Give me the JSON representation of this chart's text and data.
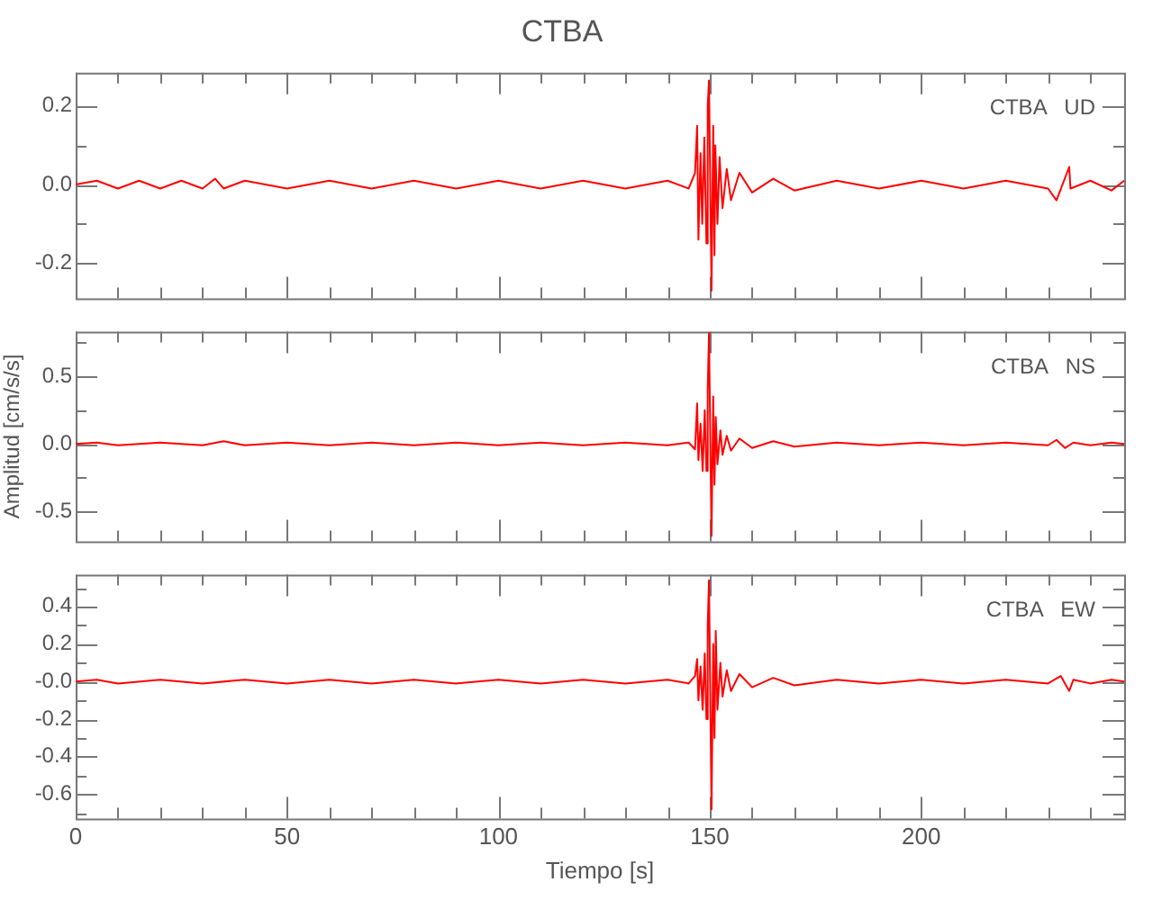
{
  "chart_data": [
    {
      "type": "line",
      "title": "CTBA",
      "annotations": [
        "CTBA   UD"
      ],
      "tick_labels": "y",
      "xlim": [
        0,
        248
      ],
      "ylim": [
        -0.29,
        0.285
      ],
      "xticks": [
        0,
        {
          "value": 10,
          "label": null
        },
        {
          "value": 20,
          "label": null
        },
        {
          "value": 30,
          "label": null
        },
        {
          "value": 40,
          "label": null
        },
        50,
        {
          "value": 60,
          "label": null
        },
        {
          "value": 70,
          "label": null
        },
        {
          "value": 80,
          "label": null
        },
        {
          "value": 90,
          "label": null
        },
        100,
        {
          "value": 110,
          "label": null
        },
        {
          "value": 120,
          "label": null
        },
        {
          "value": 130,
          "label": null
        },
        {
          "value": 140,
          "label": null
        },
        150,
        {
          "value": 160,
          "label": null
        },
        {
          "value": 170,
          "label": null
        },
        {
          "value": 180,
          "label": null
        },
        {
          "value": 190,
          "label": null
        },
        200,
        {
          "value": 210,
          "label": null
        },
        {
          "value": 220,
          "label": null
        },
        {
          "value": 230,
          "label": null
        },
        {
          "value": 240,
          "label": null
        }
      ],
      "yticks": [
        {
          "value": -0.2,
          "label": "-0.2"
        },
        {
          "value": -0.1,
          "label": null
        },
        {
          "value": 0,
          "label": "0.0"
        },
        {
          "value": 0.1,
          "label": null
        },
        {
          "value": 0.2,
          "label": "0.2"
        }
      ],
      "x": [
        0,
        5,
        10,
        15,
        20,
        25,
        30,
        33,
        35,
        40,
        50,
        60,
        70,
        80,
        90,
        100,
        110,
        120,
        130,
        140,
        145,
        146.5,
        147,
        147.3,
        147.8,
        148.2,
        148.7,
        149.2,
        149.5,
        149.8,
        150.4,
        150.8,
        151.1,
        151.3,
        151.8,
        152.3,
        153,
        154,
        155,
        157,
        160,
        165,
        170,
        180,
        190,
        200,
        210,
        220,
        230,
        232,
        235,
        235.3,
        240,
        245,
        248
      ],
      "series": [
        {
          "color": "#ff0000",
          "values": [
            0,
            0.01,
            -0.01,
            0.01,
            -0.01,
            0.01,
            -0.01,
            0.015,
            -0.01,
            0.01,
            -0.01,
            0.01,
            -0.01,
            0.01,
            -0.01,
            0.01,
            -0.01,
            0.01,
            -0.01,
            0.01,
            -0.01,
            0.03,
            0.15,
            -0.14,
            0.08,
            -0.1,
            0.12,
            -0.15,
            0.2,
            0.265,
            -0.27,
            0.15,
            -0.18,
            0.1,
            -0.1,
            0.07,
            -0.06,
            0.04,
            -0.04,
            0.03,
            -0.02,
            0.015,
            -0.015,
            0.01,
            -0.01,
            0.01,
            -0.01,
            0.01,
            -0.01,
            -0.04,
            0.045,
            -0.01,
            0.01,
            -0.015,
            0.01
          ]
        }
      ]
    },
    {
      "type": "line",
      "ylabel": "Amplitud [cm/s/s]",
      "annotations": [
        "CTBA   NS"
      ],
      "tick_labels": "y",
      "xlim": [
        0,
        248
      ],
      "ylim": [
        -0.72,
        0.83
      ],
      "xticks": [
        0,
        {
          "value": 10,
          "label": null
        },
        {
          "value": 20,
          "label": null
        },
        {
          "value": 30,
          "label": null
        },
        {
          "value": 40,
          "label": null
        },
        50,
        {
          "value": 60,
          "label": null
        },
        {
          "value": 70,
          "label": null
        },
        {
          "value": 80,
          "label": null
        },
        {
          "value": 90,
          "label": null
        },
        100,
        {
          "value": 110,
          "label": null
        },
        {
          "value": 120,
          "label": null
        },
        {
          "value": 130,
          "label": null
        },
        {
          "value": 140,
          "label": null
        },
        150,
        {
          "value": 160,
          "label": null
        },
        {
          "value": 170,
          "label": null
        },
        {
          "value": 180,
          "label": null
        },
        {
          "value": 190,
          "label": null
        },
        200,
        {
          "value": 210,
          "label": null
        },
        {
          "value": 220,
          "label": null
        },
        {
          "value": 230,
          "label": null
        },
        {
          "value": 240,
          "label": null
        }
      ],
      "yticks": [
        {
          "value": -0.5,
          "label": "-0.5"
        },
        {
          "value": -0.25,
          "label": null
        },
        {
          "value": 0,
          "label": "0.0"
        },
        {
          "value": 0.25,
          "label": null
        },
        {
          "value": 0.5,
          "label": "0.5"
        },
        {
          "value": 0.75,
          "label": null
        }
      ],
      "x": [
        0,
        5,
        10,
        20,
        30,
        35,
        40,
        50,
        60,
        70,
        80,
        90,
        100,
        110,
        120,
        130,
        140,
        145,
        146.5,
        147,
        147.3,
        147.8,
        148.3,
        148.8,
        149.2,
        149.5,
        149.8,
        150.4,
        150.8,
        151.1,
        151.4,
        151.8,
        152.5,
        153,
        154,
        155,
        157,
        160,
        165,
        170,
        180,
        190,
        200,
        210,
        220,
        230,
        232,
        234,
        236,
        240,
        245,
        248
      ],
      "series": [
        {
          "color": "#ff0000",
          "values": [
            0,
            0.01,
            -0.01,
            0.01,
            -0.01,
            0.02,
            -0.01,
            0.01,
            -0.01,
            0.01,
            -0.01,
            0.01,
            -0.01,
            0.01,
            -0.01,
            0.01,
            -0.01,
            0.01,
            -0.04,
            0.3,
            -0.12,
            0.15,
            -0.2,
            0.25,
            -0.2,
            0.4,
            0.82,
            -0.68,
            0.35,
            -0.3,
            0.2,
            -0.15,
            0.1,
            -0.08,
            0.06,
            -0.05,
            0.04,
            -0.03,
            0.02,
            -0.02,
            0.01,
            -0.01,
            0.01,
            -0.01,
            0.01,
            -0.01,
            0.03,
            -0.03,
            0.01,
            -0.01,
            0.01,
            0
          ]
        }
      ]
    },
    {
      "type": "line",
      "xlabel": "Tiempo [s]",
      "annotations": [
        "CTBA   EW"
      ],
      "xlim": [
        0,
        248
      ],
      "ylim": [
        -0.73,
        0.57
      ],
      "xticks": [
        0,
        {
          "value": 10,
          "label": null
        },
        {
          "value": 20,
          "label": null
        },
        {
          "value": 30,
          "label": null
        },
        {
          "value": 40,
          "label": null
        },
        50,
        {
          "value": 60,
          "label": null
        },
        {
          "value": 70,
          "label": null
        },
        {
          "value": 80,
          "label": null
        },
        {
          "value": 90,
          "label": null
        },
        100,
        {
          "value": 110,
          "label": null
        },
        {
          "value": 120,
          "label": null
        },
        {
          "value": 130,
          "label": null
        },
        {
          "value": 140,
          "label": null
        },
        150,
        {
          "value": 160,
          "label": null
        },
        {
          "value": 170,
          "label": null
        },
        {
          "value": 180,
          "label": null
        },
        {
          "value": 190,
          "label": null
        },
        200,
        {
          "value": 210,
          "label": null
        },
        {
          "value": 220,
          "label": null
        },
        {
          "value": 230,
          "label": null
        },
        {
          "value": 240,
          "label": null
        }
      ],
      "yticks": [
        {
          "value": -0.7,
          "label": null
        },
        {
          "value": -0.6,
          "label": "-0.6"
        },
        {
          "value": -0.5,
          "label": null
        },
        {
          "value": -0.4,
          "label": "-0.4"
        },
        {
          "value": -0.3,
          "label": null
        },
        {
          "value": -0.2,
          "label": "-0.2"
        },
        {
          "value": -0.1,
          "label": null
        },
        {
          "value": 0,
          "label": "-0.0"
        },
        {
          "value": 0.1,
          "label": null
        },
        {
          "value": 0.2,
          "label": "0.2"
        },
        {
          "value": 0.3,
          "label": null
        },
        {
          "value": 0.4,
          "label": "0.4"
        },
        {
          "value": 0.5,
          "label": null
        }
      ],
      "x": [
        0,
        5,
        10,
        20,
        30,
        40,
        50,
        60,
        70,
        80,
        90,
        100,
        110,
        120,
        130,
        140,
        145,
        146.5,
        147,
        147.3,
        147.8,
        148.3,
        148.8,
        149.2,
        149.5,
        149.8,
        150.4,
        150.8,
        151.1,
        151.4,
        151.8,
        152.5,
        153,
        154,
        155,
        157,
        160,
        165,
        170,
        180,
        190,
        200,
        210,
        220,
        230,
        233,
        235,
        236,
        240,
        245,
        248
      ],
      "series": [
        {
          "color": "#ff0000",
          "values": [
            0,
            0.01,
            -0.01,
            0.01,
            -0.01,
            0.01,
            -0.01,
            0.01,
            -0.01,
            0.01,
            -0.01,
            0.01,
            -0.01,
            0.01,
            -0.01,
            0.01,
            -0.01,
            0.03,
            0.12,
            -0.1,
            0.08,
            -0.15,
            0.15,
            -0.2,
            0.3,
            0.54,
            -0.68,
            0.2,
            -0.3,
            0.27,
            -0.15,
            0.1,
            -0.08,
            0.06,
            -0.05,
            0.04,
            -0.03,
            0.02,
            -0.02,
            0.01,
            -0.01,
            0.01,
            -0.01,
            0.01,
            -0.01,
            0.03,
            -0.05,
            0.01,
            -0.01,
            0.01,
            0
          ]
        }
      ]
    }
  ]
}
